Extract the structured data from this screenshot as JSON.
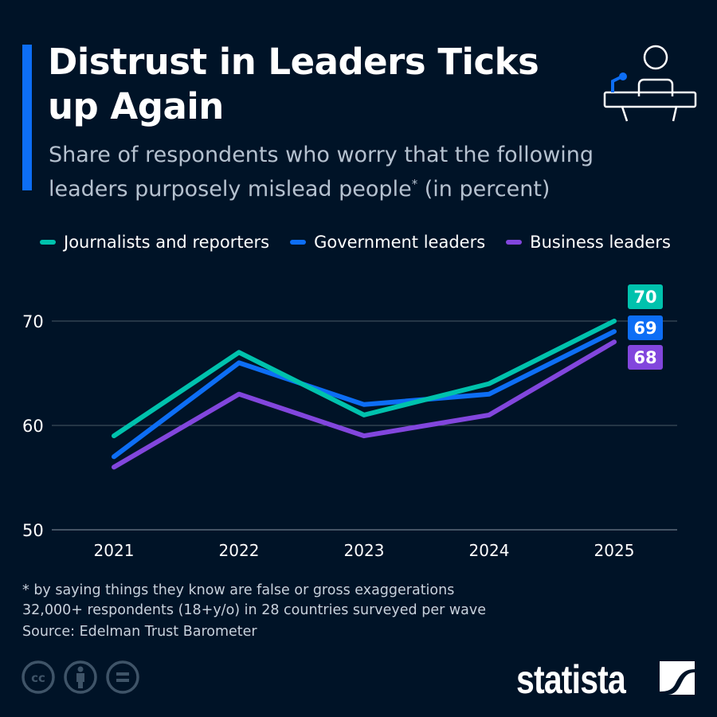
{
  "header": {
    "title": "Distrust in Leaders Ticks up Again",
    "subtitle": "Share of respondents who worry that the following leaders purposely mislead people",
    "subtitle_mark": "*",
    "subtitle_tail": " (in percent)",
    "icon": "podium-speaker-icon",
    "accent": "#0d6ef5"
  },
  "chart_data": {
    "type": "line",
    "x": [
      "2021",
      "2022",
      "2023",
      "2024",
      "2025"
    ],
    "ylim": [
      50,
      70
    ],
    "yticks": [
      "50",
      "60",
      "70"
    ],
    "grid": true,
    "legend_placement": "top",
    "series": [
      {
        "name": "Journalists and reporters",
        "color": "#00c2ad",
        "values": [
          59,
          67,
          61,
          64,
          70
        ],
        "end_label": "70"
      },
      {
        "name": "Government leaders",
        "color": "#0d6ef5",
        "values": [
          57,
          66,
          62,
          63,
          69
        ],
        "end_label": "69"
      },
      {
        "name": "Business leaders",
        "color": "#8246dd",
        "values": [
          56,
          63,
          59,
          61,
          68
        ],
        "end_label": "68"
      }
    ]
  },
  "footer": {
    "note": "* by saying things they know are false or gross exaggerations",
    "sample": "32,000+ respondents (18+y/o) in 28 countries surveyed per wave",
    "source": "Source: Edelman Trust Barometer",
    "license_icons": [
      "creative-commons-icon",
      "attribution-icon",
      "no-derivatives-icon"
    ],
    "logo": "statista"
  }
}
